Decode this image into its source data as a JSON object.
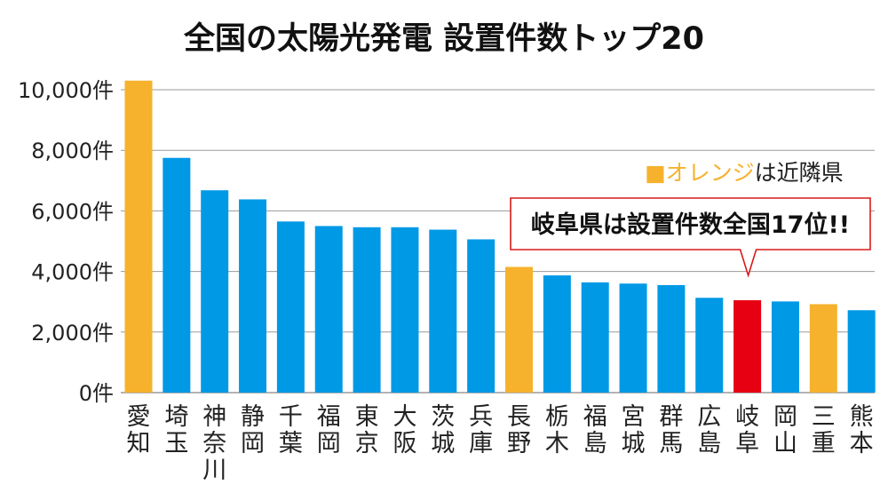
{
  "colors": {
    "default": "#0099e6",
    "neighbor": "#f6b22d",
    "highlight": "#e60012",
    "grid": "#9a9a9a",
    "text": "#222222",
    "callout_border": "#d81a1a"
  },
  "legend": {
    "marker": "■",
    "colored_text": "オレンジ",
    "rest_text": "は近隣県"
  },
  "callout": {
    "text": "岐阜県は設置件数全国17位!!",
    "target_category": "岐阜"
  },
  "chart_data": {
    "type": "bar",
    "title": "全国の太陽光発電 設置件数トップ20",
    "xlabel": "",
    "ylabel": "",
    "ylim": [
      0,
      10000
    ],
    "yticks": [
      {
        "value": 0,
        "label": "0件"
      },
      {
        "value": 2000,
        "label": "2,000件"
      },
      {
        "value": 4000,
        "label": "4,000件"
      },
      {
        "value": 6000,
        "label": "6,000件"
      },
      {
        "value": 8000,
        "label": "8,000件"
      },
      {
        "value": 10000,
        "label": "10,000件"
      }
    ],
    "grid": true,
    "categories": [
      "愛知",
      "埼玉",
      "神奈川",
      "静岡",
      "千葉",
      "福岡",
      "東京",
      "大阪",
      "茨城",
      "兵庫",
      "長野",
      "栃木",
      "福島",
      "宮城",
      "群馬",
      "広島",
      "岐阜",
      "岡山",
      "三重",
      "熊本"
    ],
    "values": [
      10300,
      7750,
      6680,
      6380,
      5650,
      5500,
      5460,
      5460,
      5380,
      5060,
      4150,
      3870,
      3640,
      3600,
      3550,
      3130,
      3050,
      3010,
      2920,
      2720
    ],
    "bar_color_keys": [
      "neighbor",
      "default",
      "default",
      "default",
      "default",
      "default",
      "default",
      "default",
      "default",
      "default",
      "neighbor",
      "default",
      "default",
      "default",
      "default",
      "default",
      "highlight",
      "default",
      "neighbor",
      "default"
    ]
  }
}
